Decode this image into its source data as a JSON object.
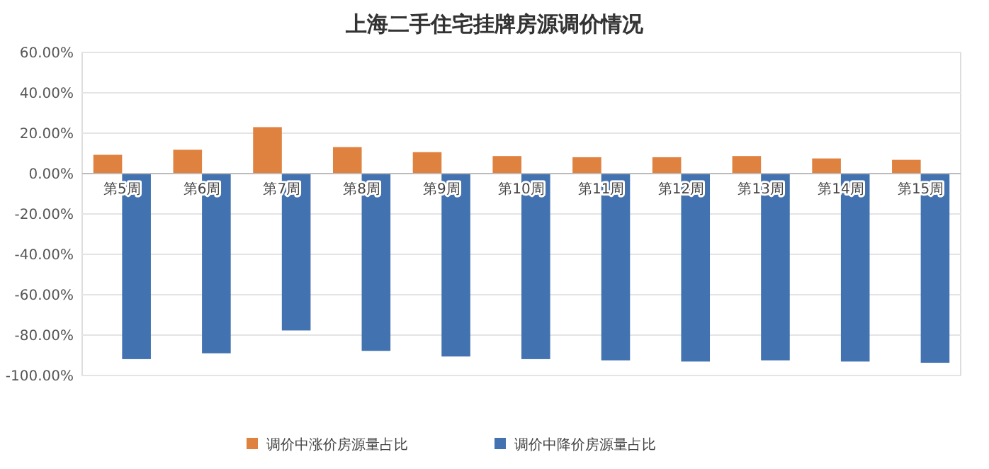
{
  "chart_data": {
    "type": "bar",
    "title": "上海二手住宅挂牌房源调价情况",
    "categories": [
      "第5周",
      "第6周",
      "第7周",
      "第8周",
      "第9周",
      "第10周",
      "第11周",
      "第12周",
      "第13周",
      "第14周",
      "第15周"
    ],
    "series": [
      {
        "name": "调价中涨价房源量占比",
        "color": "#e0823f",
        "values": [
          9.3,
          11.8,
          23.0,
          13.1,
          10.6,
          8.7,
          8.1,
          8.1,
          8.7,
          7.5,
          6.8
        ]
      },
      {
        "name": "调价中降价房源量占比",
        "color": "#4272b0",
        "values": [
          -91.9,
          -89.0,
          -77.7,
          -87.8,
          -90.6,
          -91.9,
          -92.5,
          -93.1,
          -92.5,
          -93.1,
          -93.7
        ]
      }
    ],
    "ylim": [
      -100,
      60
    ],
    "yticks": [
      {
        "value": -100,
        "label": "-100.00%"
      },
      {
        "value": -80,
        "label": "-80.00%"
      },
      {
        "value": -60,
        "label": "-60.00%"
      },
      {
        "value": -40,
        "label": "-40.00%"
      },
      {
        "value": -20,
        "label": "-20.00%"
      },
      {
        "value": 0,
        "label": "0.00%"
      },
      {
        "value": 20,
        "label": "20.00%"
      },
      {
        "value": 40,
        "label": "40.00%"
      },
      {
        "value": 60,
        "label": "60.00%"
      }
    ],
    "grid": "y",
    "legend": "bottom"
  }
}
